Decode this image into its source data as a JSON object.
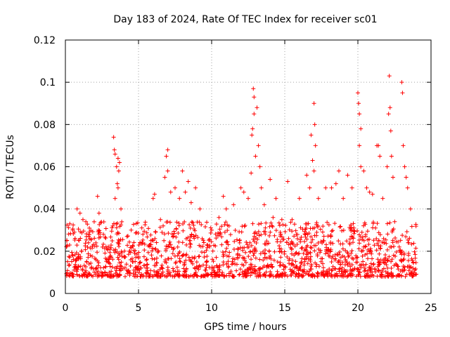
{
  "chart_data": {
    "type": "scatter",
    "title": "Day 183 of 2024, Rate Of TEC Index for receiver sc01",
    "xlabel": "GPS time / hours",
    "ylabel": "ROTI / TECUs",
    "xlim": [
      0,
      25
    ],
    "ylim": [
      0,
      0.12
    ],
    "x_ticks": [
      0,
      5,
      10,
      15,
      20,
      25
    ],
    "x_tick_labels": [
      "0",
      "5",
      "10",
      "15",
      "20",
      "25"
    ],
    "y_ticks": [
      0,
      0.02,
      0.04,
      0.06,
      0.08,
      0.1,
      0.12
    ],
    "y_tick_labels": [
      "0",
      "0.02",
      "0.04",
      "0.06",
      "0.08",
      "0.1",
      "0.12"
    ],
    "grid": true,
    "marker": "plus",
    "color": "#ff0000",
    "series": [
      {
        "name": "ROTI",
        "note": "dense background cloud ~0.005-0.03 TECU/s over 0-24 h plus representative visible peak points",
        "band": {
          "x_range": [
            0,
            24
          ],
          "y_range": [
            0.004,
            0.03
          ]
        },
        "points": [
          [
            0.1,
            0.025
          ],
          [
            0.3,
            0.033
          ],
          [
            0.5,
            0.03
          ],
          [
            0.8,
            0.04
          ],
          [
            1.0,
            0.038
          ],
          [
            1.2,
            0.035
          ],
          [
            1.4,
            0.034
          ],
          [
            2.2,
            0.046
          ],
          [
            2.3,
            0.038
          ],
          [
            2.6,
            0.028
          ],
          [
            3.3,
            0.074
          ],
          [
            3.35,
            0.068
          ],
          [
            3.4,
            0.066
          ],
          [
            3.5,
            0.06
          ],
          [
            3.55,
            0.052
          ],
          [
            3.6,
            0.064
          ],
          [
            3.65,
            0.058
          ],
          [
            3.7,
            0.062
          ],
          [
            3.6,
            0.05
          ],
          [
            3.4,
            0.045
          ],
          [
            3.8,
            0.04
          ],
          [
            4.5,
            0.03
          ],
          [
            5.3,
            0.028
          ],
          [
            6.0,
            0.045
          ],
          [
            6.1,
            0.047
          ],
          [
            6.5,
            0.035
          ],
          [
            6.8,
            0.055
          ],
          [
            6.9,
            0.065
          ],
          [
            7.0,
            0.068
          ],
          [
            7.0,
            0.058
          ],
          [
            7.2,
            0.048
          ],
          [
            7.5,
            0.05
          ],
          [
            7.8,
            0.045
          ],
          [
            8.0,
            0.058
          ],
          [
            8.2,
            0.048
          ],
          [
            8.4,
            0.053
          ],
          [
            8.6,
            0.043
          ],
          [
            8.9,
            0.05
          ],
          [
            9.2,
            0.04
          ],
          [
            10.0,
            0.03
          ],
          [
            10.5,
            0.036
          ],
          [
            10.8,
            0.046
          ],
          [
            11.0,
            0.04
          ],
          [
            11.5,
            0.042
          ],
          [
            12.0,
            0.05
          ],
          [
            12.2,
            0.048
          ],
          [
            12.5,
            0.045
          ],
          [
            12.7,
            0.057
          ],
          [
            12.75,
            0.075
          ],
          [
            12.8,
            0.078
          ],
          [
            12.85,
            0.097
          ],
          [
            12.9,
            0.093
          ],
          [
            12.9,
            0.085
          ],
          [
            13.0,
            0.065
          ],
          [
            13.1,
            0.088
          ],
          [
            13.2,
            0.07
          ],
          [
            13.3,
            0.06
          ],
          [
            13.4,
            0.05
          ],
          [
            13.6,
            0.042
          ],
          [
            14.0,
            0.054
          ],
          [
            14.2,
            0.036
          ],
          [
            14.4,
            0.045
          ],
          [
            14.8,
            0.035
          ],
          [
            15.2,
            0.053
          ],
          [
            15.5,
            0.035
          ],
          [
            16.0,
            0.045
          ],
          [
            16.5,
            0.056
          ],
          [
            16.7,
            0.05
          ],
          [
            16.8,
            0.075
          ],
          [
            16.9,
            0.063
          ],
          [
            17.0,
            0.09
          ],
          [
            17.05,
            0.08
          ],
          [
            17.1,
            0.07
          ],
          [
            17.0,
            0.058
          ],
          [
            17.3,
            0.045
          ],
          [
            17.8,
            0.05
          ],
          [
            18.2,
            0.05
          ],
          [
            18.5,
            0.052
          ],
          [
            18.7,
            0.058
          ],
          [
            19.0,
            0.045
          ],
          [
            19.3,
            0.056
          ],
          [
            19.6,
            0.05
          ],
          [
            20.0,
            0.095
          ],
          [
            20.05,
            0.09
          ],
          [
            20.1,
            0.085
          ],
          [
            20.1,
            0.07
          ],
          [
            20.2,
            0.078
          ],
          [
            20.2,
            0.06
          ],
          [
            20.4,
            0.058
          ],
          [
            20.6,
            0.05
          ],
          [
            20.8,
            0.048
          ],
          [
            21.0,
            0.047
          ],
          [
            21.3,
            0.07
          ],
          [
            21.4,
            0.07
          ],
          [
            21.5,
            0.065
          ],
          [
            21.7,
            0.045
          ],
          [
            22.0,
            0.06
          ],
          [
            22.1,
            0.085
          ],
          [
            22.15,
            0.103
          ],
          [
            22.2,
            0.088
          ],
          [
            22.25,
            0.077
          ],
          [
            22.3,
            0.065
          ],
          [
            22.4,
            0.055
          ],
          [
            23.0,
            0.1
          ],
          [
            23.05,
            0.095
          ],
          [
            23.1,
            0.07
          ],
          [
            23.2,
            0.06
          ],
          [
            23.3,
            0.055
          ],
          [
            23.4,
            0.05
          ],
          [
            23.6,
            0.04
          ]
        ]
      }
    ]
  }
}
